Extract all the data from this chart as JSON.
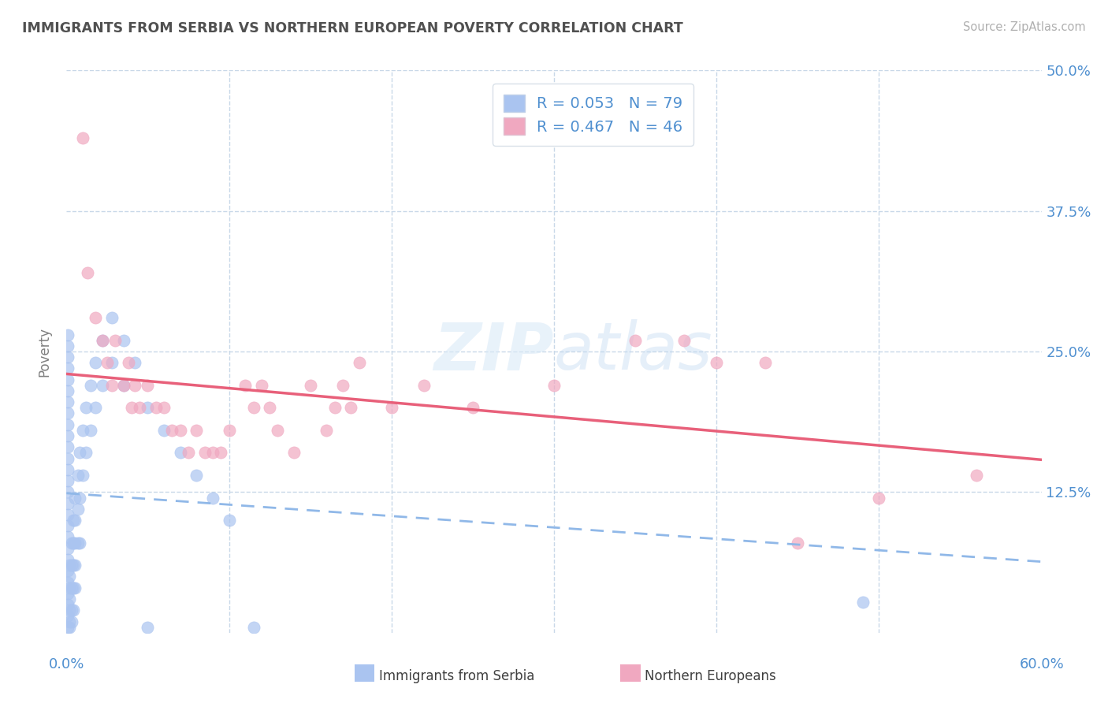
{
  "title": "IMMIGRANTS FROM SERBIA VS NORTHERN EUROPEAN POVERTY CORRELATION CHART",
  "source": "Source: ZipAtlas.com",
  "ylabel": "Poverty",
  "xlim": [
    0.0,
    0.6
  ],
  "ylim": [
    0.0,
    0.5
  ],
  "xticks": [
    0.0,
    0.1,
    0.2,
    0.3,
    0.4,
    0.5,
    0.6
  ],
  "xticklabels": [
    "0.0%",
    "",
    "",
    "",
    "",
    "",
    "60.0%"
  ],
  "yticks": [
    0.0,
    0.125,
    0.25,
    0.375,
    0.5
  ],
  "yticklabels": [
    "",
    "12.5%",
    "25.0%",
    "37.5%",
    "50.0%"
  ],
  "serbia_R": 0.053,
  "serbia_N": 79,
  "northern_R": 0.467,
  "northern_N": 46,
  "serbia_color": "#aac4f0",
  "northern_color": "#f0a8c0",
  "serbia_line_color": "#90b8e8",
  "northern_line_color": "#e8607a",
  "background_color": "#ffffff",
  "grid_color": "#c8d8e8",
  "title_color": "#505050",
  "tick_color": "#5090d0",
  "legend_color": "#5090d0",
  "serbia_scatter": [
    [
      0.001,
      0.265
    ],
    [
      0.001,
      0.255
    ],
    [
      0.001,
      0.245
    ],
    [
      0.001,
      0.235
    ],
    [
      0.001,
      0.225
    ],
    [
      0.001,
      0.215
    ],
    [
      0.001,
      0.205
    ],
    [
      0.001,
      0.195
    ],
    [
      0.001,
      0.185
    ],
    [
      0.001,
      0.175
    ],
    [
      0.001,
      0.165
    ],
    [
      0.001,
      0.155
    ],
    [
      0.001,
      0.145
    ],
    [
      0.001,
      0.135
    ],
    [
      0.001,
      0.125
    ],
    [
      0.001,
      0.115
    ],
    [
      0.001,
      0.105
    ],
    [
      0.001,
      0.095
    ],
    [
      0.001,
      0.085
    ],
    [
      0.001,
      0.075
    ],
    [
      0.001,
      0.065
    ],
    [
      0.001,
      0.055
    ],
    [
      0.001,
      0.045
    ],
    [
      0.001,
      0.035
    ],
    [
      0.001,
      0.025
    ],
    [
      0.001,
      0.015
    ],
    [
      0.001,
      0.005
    ],
    [
      0.002,
      0.06
    ],
    [
      0.002,
      0.05
    ],
    [
      0.002,
      0.04
    ],
    [
      0.002,
      0.03
    ],
    [
      0.002,
      0.02
    ],
    [
      0.002,
      0.01
    ],
    [
      0.003,
      0.08
    ],
    [
      0.003,
      0.06
    ],
    [
      0.003,
      0.04
    ],
    [
      0.003,
      0.02
    ],
    [
      0.003,
      0.01
    ],
    [
      0.004,
      0.1
    ],
    [
      0.004,
      0.08
    ],
    [
      0.004,
      0.06
    ],
    [
      0.004,
      0.04
    ],
    [
      0.004,
      0.02
    ],
    [
      0.005,
      0.12
    ],
    [
      0.005,
      0.1
    ],
    [
      0.005,
      0.08
    ],
    [
      0.005,
      0.06
    ],
    [
      0.005,
      0.04
    ],
    [
      0.007,
      0.14
    ],
    [
      0.007,
      0.11
    ],
    [
      0.007,
      0.08
    ],
    [
      0.008,
      0.16
    ],
    [
      0.008,
      0.12
    ],
    [
      0.008,
      0.08
    ],
    [
      0.01,
      0.18
    ],
    [
      0.01,
      0.14
    ],
    [
      0.012,
      0.2
    ],
    [
      0.012,
      0.16
    ],
    [
      0.015,
      0.22
    ],
    [
      0.015,
      0.18
    ],
    [
      0.018,
      0.24
    ],
    [
      0.018,
      0.2
    ],
    [
      0.022,
      0.26
    ],
    [
      0.022,
      0.22
    ],
    [
      0.028,
      0.28
    ],
    [
      0.028,
      0.24
    ],
    [
      0.035,
      0.26
    ],
    [
      0.035,
      0.22
    ],
    [
      0.042,
      0.24
    ],
    [
      0.05,
      0.2
    ],
    [
      0.06,
      0.18
    ],
    [
      0.07,
      0.16
    ],
    [
      0.08,
      0.14
    ],
    [
      0.09,
      0.12
    ],
    [
      0.1,
      0.1
    ],
    [
      0.002,
      0.005
    ],
    [
      0.49,
      0.027
    ],
    [
      0.05,
      0.005
    ],
    [
      0.115,
      0.005
    ]
  ],
  "northern_scatter": [
    [
      0.01,
      0.44
    ],
    [
      0.013,
      0.32
    ],
    [
      0.018,
      0.28
    ],
    [
      0.022,
      0.26
    ],
    [
      0.025,
      0.24
    ],
    [
      0.028,
      0.22
    ],
    [
      0.03,
      0.26
    ],
    [
      0.035,
      0.22
    ],
    [
      0.038,
      0.24
    ],
    [
      0.04,
      0.2
    ],
    [
      0.042,
      0.22
    ],
    [
      0.045,
      0.2
    ],
    [
      0.05,
      0.22
    ],
    [
      0.055,
      0.2
    ],
    [
      0.06,
      0.2
    ],
    [
      0.065,
      0.18
    ],
    [
      0.07,
      0.18
    ],
    [
      0.075,
      0.16
    ],
    [
      0.08,
      0.18
    ],
    [
      0.085,
      0.16
    ],
    [
      0.09,
      0.16
    ],
    [
      0.095,
      0.16
    ],
    [
      0.1,
      0.18
    ],
    [
      0.11,
      0.22
    ],
    [
      0.115,
      0.2
    ],
    [
      0.12,
      0.22
    ],
    [
      0.125,
      0.2
    ],
    [
      0.13,
      0.18
    ],
    [
      0.14,
      0.16
    ],
    [
      0.15,
      0.22
    ],
    [
      0.16,
      0.18
    ],
    [
      0.165,
      0.2
    ],
    [
      0.17,
      0.22
    ],
    [
      0.175,
      0.2
    ],
    [
      0.18,
      0.24
    ],
    [
      0.2,
      0.2
    ],
    [
      0.22,
      0.22
    ],
    [
      0.25,
      0.2
    ],
    [
      0.3,
      0.22
    ],
    [
      0.35,
      0.26
    ],
    [
      0.38,
      0.26
    ],
    [
      0.4,
      0.24
    ],
    [
      0.43,
      0.24
    ],
    [
      0.45,
      0.08
    ],
    [
      0.5,
      0.12
    ],
    [
      0.56,
      0.14
    ]
  ]
}
